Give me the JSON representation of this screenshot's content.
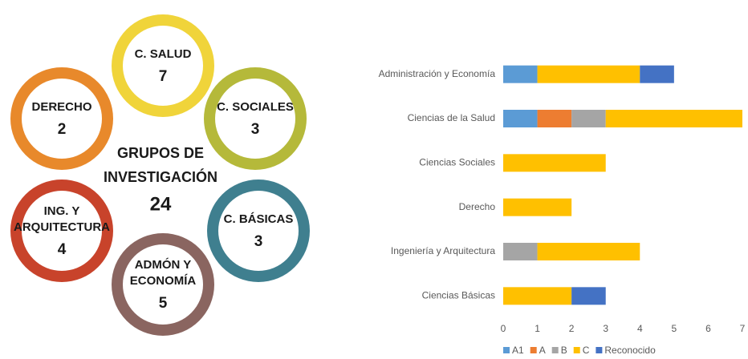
{
  "infographic": {
    "center": {
      "lines": [
        "GRUPOS DE",
        "INVESTIGACIÓN"
      ],
      "value": "24"
    },
    "nodes": [
      {
        "lines": [
          "C. SALUD"
        ],
        "value": "7",
        "color": "#f0d43a"
      },
      {
        "lines": [
          "DERECHO"
        ],
        "value": "2",
        "color": "#e8892b"
      },
      {
        "lines": [
          "C. SOCIALES"
        ],
        "value": "3",
        "color": "#b5b93a"
      },
      {
        "lines": [
          "ING. Y",
          "ARQUITECTURA"
        ],
        "value": "4",
        "color": "#c8432b"
      },
      {
        "lines": [
          "C. BÁSICAS"
        ],
        "value": "3",
        "color": "#3f7f8f"
      },
      {
        "lines": [
          "ADMÓN Y",
          "ECONOMÍA"
        ],
        "value": "5",
        "color": "#8a6560"
      }
    ]
  },
  "chart_data": {
    "type": "stacked-barh",
    "categories": [
      "Administración y Economía",
      "Ciencias de la Salud",
      "Ciencias Sociales",
      "Derecho",
      "Ingeniería y Arquitectura",
      "Ciencias Básicas"
    ],
    "series": [
      {
        "name": "A1",
        "color": "#5b9bd5",
        "values": [
          1,
          1,
          0,
          0,
          0,
          0
        ]
      },
      {
        "name": "A",
        "color": "#ed7d31",
        "values": [
          0,
          1,
          0,
          0,
          0,
          0
        ]
      },
      {
        "name": "B",
        "color": "#a5a5a5",
        "values": [
          0,
          1,
          0,
          0,
          1,
          0
        ]
      },
      {
        "name": "C",
        "color": "#ffc000",
        "values": [
          3,
          4,
          3,
          2,
          3,
          2
        ]
      },
      {
        "name": "Reconocido",
        "color": "#4472c4",
        "values": [
          1,
          0,
          0,
          0,
          0,
          1
        ]
      }
    ],
    "xlim": [
      0,
      7
    ],
    "xticks": [
      0,
      1,
      2,
      3,
      4,
      5,
      6,
      7
    ],
    "legend": "bottom"
  }
}
